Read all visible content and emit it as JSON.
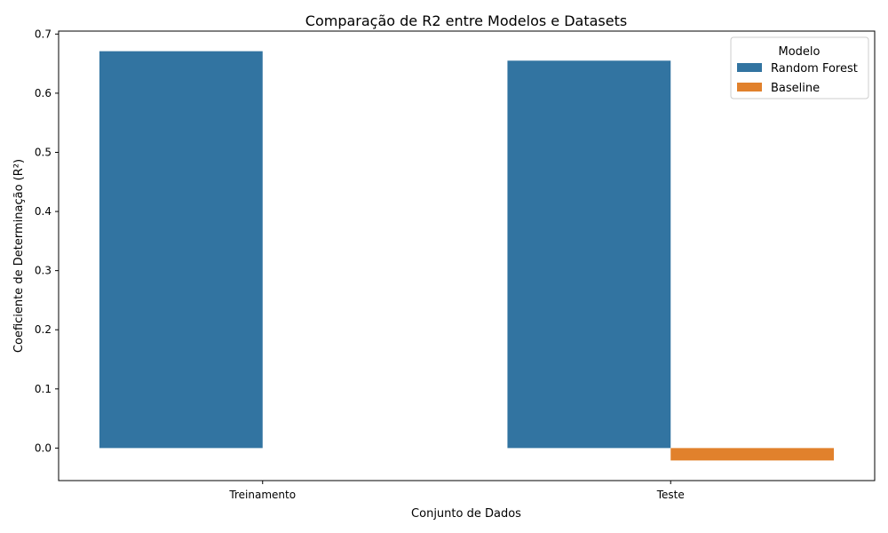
{
  "chart_data": {
    "type": "bar",
    "title": "Comparação de R2 entre Modelos e Datasets",
    "xlabel": "Conjunto de Dados",
    "ylabel": "Coeficiente de Determinação (R²)",
    "categories": [
      "Treinamento",
      "Teste"
    ],
    "series": [
      {
        "name": "Random Forest",
        "color": "#3274a1",
        "values": [
          0.671,
          0.655
        ]
      },
      {
        "name": "Baseline",
        "color": "#e1812c",
        "values": [
          0.0,
          -0.021
        ]
      }
    ],
    "ylim": [
      -0.055,
      0.705
    ],
    "yticks": [
      0.0,
      0.1,
      0.2,
      0.3,
      0.4,
      0.5,
      0.6,
      0.7
    ],
    "ytick_labels": [
      "0.0",
      "0.1",
      "0.2",
      "0.3",
      "0.4",
      "0.5",
      "0.6",
      "0.7"
    ],
    "grid": false,
    "legend": {
      "title": "Modelo",
      "placement": "top-right"
    }
  }
}
